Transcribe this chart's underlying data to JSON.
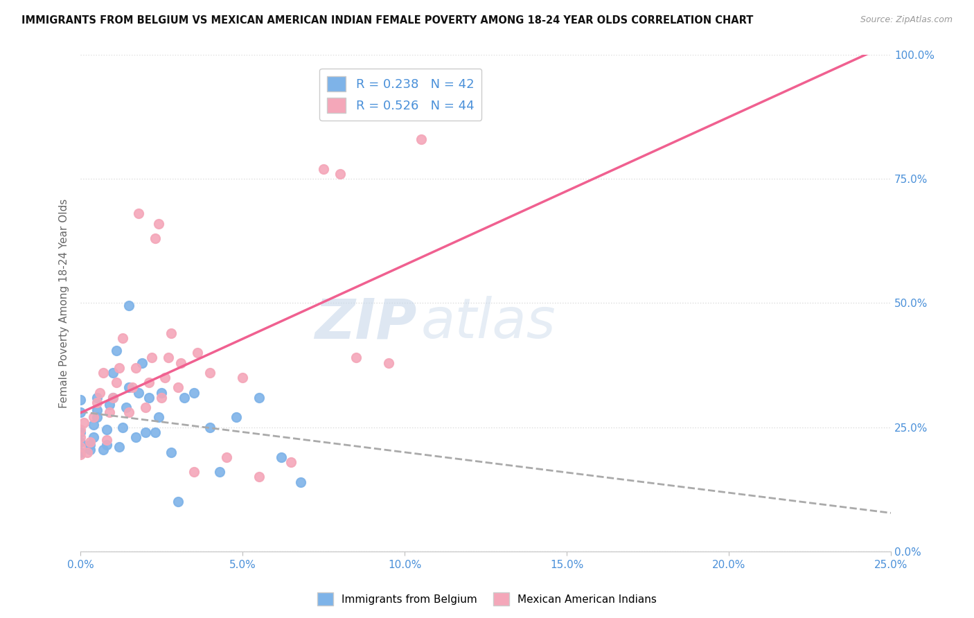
{
  "title": "IMMIGRANTS FROM BELGIUM VS MEXICAN AMERICAN INDIAN FEMALE POVERTY AMONG 18-24 YEAR OLDS CORRELATION CHART",
  "source": "Source: ZipAtlas.com",
  "legend_blue_label": "Immigrants from Belgium",
  "legend_pink_label": "Mexican American Indians",
  "R_blue": 0.238,
  "N_blue": 42,
  "R_pink": 0.526,
  "N_pink": 44,
  "blue_color": "#7eb3e8",
  "pink_color": "#f4a7b9",
  "trend_blue_color": "#aaaaaa",
  "trend_pink_color": "#f06090",
  "watermark_zip": "ZIP",
  "watermark_atlas": "atlas",
  "ylabel_label": "Female Poverty Among 18-24 Year Olds",
  "blue_scatter": [
    [
      0.0,
      20.0
    ],
    [
      0.0,
      22.0
    ],
    [
      0.0,
      24.0
    ],
    [
      0.0,
      28.0
    ],
    [
      0.0,
      30.5
    ],
    [
      0.3,
      20.5
    ],
    [
      0.3,
      21.5
    ],
    [
      0.4,
      23.0
    ],
    [
      0.4,
      25.5
    ],
    [
      0.5,
      27.0
    ],
    [
      0.5,
      28.5
    ],
    [
      0.5,
      31.0
    ],
    [
      0.7,
      20.5
    ],
    [
      0.8,
      21.5
    ],
    [
      0.8,
      24.5
    ],
    [
      0.9,
      29.5
    ],
    [
      1.0,
      31.0
    ],
    [
      1.0,
      36.0
    ],
    [
      1.1,
      40.5
    ],
    [
      1.2,
      21.0
    ],
    [
      1.3,
      25.0
    ],
    [
      1.4,
      29.0
    ],
    [
      1.5,
      33.0
    ],
    [
      1.5,
      49.5
    ],
    [
      1.7,
      23.0
    ],
    [
      1.8,
      32.0
    ],
    [
      1.9,
      38.0
    ],
    [
      2.0,
      24.0
    ],
    [
      2.1,
      31.0
    ],
    [
      2.3,
      24.0
    ],
    [
      2.4,
      27.0
    ],
    [
      2.5,
      32.0
    ],
    [
      2.8,
      20.0
    ],
    [
      3.0,
      10.0
    ],
    [
      3.2,
      31.0
    ],
    [
      3.5,
      32.0
    ],
    [
      4.0,
      25.0
    ],
    [
      4.3,
      16.0
    ],
    [
      4.8,
      27.0
    ],
    [
      5.5,
      31.0
    ],
    [
      6.2,
      19.0
    ],
    [
      6.8,
      14.0
    ]
  ],
  "pink_scatter": [
    [
      0.0,
      19.5
    ],
    [
      0.0,
      21.0
    ],
    [
      0.0,
      23.0
    ],
    [
      0.0,
      24.5
    ],
    [
      0.1,
      26.0
    ],
    [
      0.2,
      20.0
    ],
    [
      0.3,
      22.0
    ],
    [
      0.4,
      27.0
    ],
    [
      0.5,
      30.0
    ],
    [
      0.6,
      32.0
    ],
    [
      0.7,
      36.0
    ],
    [
      0.8,
      22.5
    ],
    [
      0.9,
      28.0
    ],
    [
      1.0,
      31.0
    ],
    [
      1.1,
      34.0
    ],
    [
      1.2,
      37.0
    ],
    [
      1.3,
      43.0
    ],
    [
      1.5,
      28.0
    ],
    [
      1.6,
      33.0
    ],
    [
      1.7,
      37.0
    ],
    [
      1.8,
      68.0
    ],
    [
      2.0,
      29.0
    ],
    [
      2.1,
      34.0
    ],
    [
      2.2,
      39.0
    ],
    [
      2.3,
      63.0
    ],
    [
      2.4,
      66.0
    ],
    [
      2.5,
      31.0
    ],
    [
      2.6,
      35.0
    ],
    [
      2.7,
      39.0
    ],
    [
      2.8,
      44.0
    ],
    [
      3.0,
      33.0
    ],
    [
      3.1,
      38.0
    ],
    [
      3.5,
      16.0
    ],
    [
      3.6,
      40.0
    ],
    [
      4.0,
      36.0
    ],
    [
      4.5,
      19.0
    ],
    [
      5.0,
      35.0
    ],
    [
      5.5,
      15.0
    ],
    [
      6.5,
      18.0
    ],
    [
      7.5,
      77.0
    ],
    [
      8.0,
      76.0
    ],
    [
      8.5,
      39.0
    ],
    [
      9.5,
      38.0
    ],
    [
      10.5,
      83.0
    ]
  ],
  "xlim": [
    0.0,
    25.0
  ],
  "ylim": [
    0.0,
    100.0
  ],
  "x_ticks": [
    0.0,
    5.0,
    10.0,
    15.0,
    20.0,
    25.0
  ],
  "y_ticks": [
    0.0,
    25.0,
    50.0,
    75.0,
    100.0
  ],
  "background_color": "#ffffff",
  "grid_color": "#dddddd"
}
